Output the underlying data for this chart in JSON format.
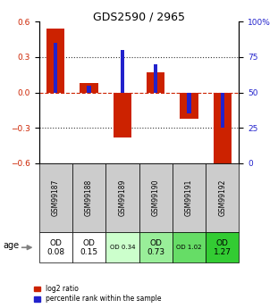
{
  "title": "GDS2590 / 2965",
  "samples": [
    "GSM99187",
    "GSM99188",
    "GSM99189",
    "GSM99190",
    "GSM99191",
    "GSM99192"
  ],
  "log2_ratio": [
    0.54,
    0.08,
    -0.38,
    0.17,
    -0.22,
    -0.65
  ],
  "percentile_rank": [
    85,
    55,
    80,
    70,
    35,
    25
  ],
  "ylim_left": [
    -0.6,
    0.6
  ],
  "ylim_right": [
    0,
    100
  ],
  "yticks_left": [
    -0.6,
    -0.3,
    0,
    0.3,
    0.6
  ],
  "yticks_right": [
    0,
    25,
    50,
    75,
    100
  ],
  "bar_color_red": "#cc2200",
  "bar_color_blue": "#2222cc",
  "hline_color": "#cc2200",
  "dotted_color": "#333333",
  "age_labels": [
    "OD\n0.08",
    "OD\n0.15",
    "OD 0.34",
    "OD\n0.73",
    "OD 1.02",
    "OD\n1.27"
  ],
  "age_bg_colors": [
    "#ffffff",
    "#ffffff",
    "#ccffcc",
    "#99ee99",
    "#66dd66",
    "#33cc33"
  ],
  "age_fontsize_large": [
    true,
    true,
    false,
    true,
    false,
    true
  ],
  "sample_bg_color": "#cccccc",
  "legend_red": "log2 ratio",
  "legend_blue": "percentile rank within the sample"
}
